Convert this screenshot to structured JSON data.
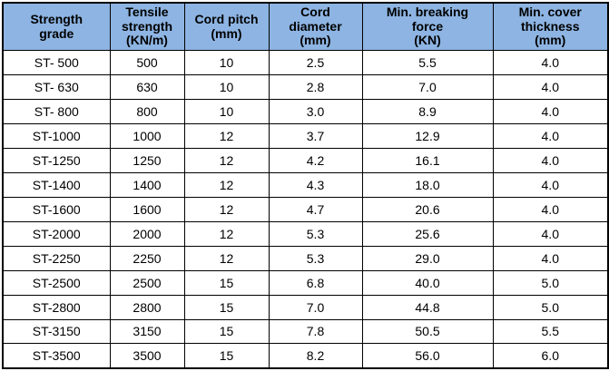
{
  "table": {
    "name": "steel-cord-strength-grades",
    "headers": [
      "Strength\ngrade",
      "Tensile\nstrength\n(KN/m)",
      "Cord pitch\n(mm)",
      "Cord\ndiameter\n(mm)",
      "Min. breaking\nforce\n(KN)",
      "Min. cover\nthickness\n(mm)"
    ],
    "rows": [
      [
        "ST- 500",
        "500",
        "10",
        "2.5",
        "5.5",
        "4.0"
      ],
      [
        "ST- 630",
        "630",
        "10",
        "2.8",
        "7.0",
        "4.0"
      ],
      [
        "ST- 800",
        "800",
        "10",
        "3.0",
        "8.9",
        "4.0"
      ],
      [
        "ST-1000",
        "1000",
        "12",
        "3.7",
        "12.9",
        "4.0"
      ],
      [
        "ST-1250",
        "1250",
        "12",
        "4.2",
        "16.1",
        "4.0"
      ],
      [
        "ST-1400",
        "1400",
        "12",
        "4.3",
        "18.0",
        "4.0"
      ],
      [
        "ST-1600",
        "1600",
        "12",
        "4.7",
        "20.6",
        "4.0"
      ],
      [
        "ST-2000",
        "2000",
        "12",
        "5.3",
        "25.6",
        "4.0"
      ],
      [
        "ST-2250",
        "2250",
        "12",
        "5.3",
        "29.0",
        "4.0"
      ],
      [
        "ST-2500",
        "2500",
        "15",
        "6.8",
        "40.0",
        "5.0"
      ],
      [
        "ST-2800",
        "2800",
        "15",
        "7.0",
        "44.8",
        "5.0"
      ],
      [
        "ST-3150",
        "3150",
        "15",
        "7.8",
        "50.5",
        "5.5"
      ],
      [
        "ST-3500",
        "3500",
        "15",
        "8.2",
        "56.0",
        "6.0"
      ]
    ],
    "colors": {
      "header_background": "#8db4e2",
      "border": "#000000",
      "text": "#000000",
      "row_background": "#ffffff"
    }
  }
}
